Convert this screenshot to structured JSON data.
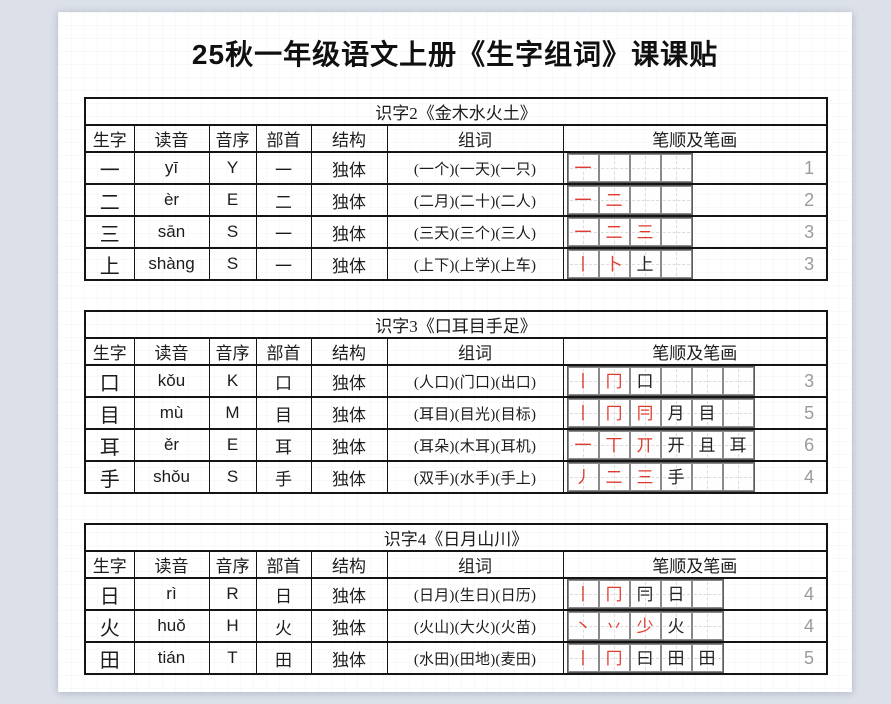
{
  "page": {
    "title": "25秋一年级语文上册《生字组词》课课贴"
  },
  "columns": [
    "生字",
    "读音",
    "音序",
    "部首",
    "结构",
    "组词",
    "笔顺及笔画"
  ],
  "colors": {
    "background": "#dbe0e9",
    "accent_red": "#d6362b",
    "stroke_red": "#de3b2d",
    "count_gray": "#9b9b9b",
    "border_black": "#141414"
  },
  "tables": [
    {
      "lesson_title": "识字2《金木水火土》",
      "grid_boxes": 4,
      "rows": [
        {
          "char": "一",
          "pinyin": "yī",
          "initial": "Y",
          "radical": "一",
          "structure": "独体",
          "words": "(一个)(一天)(一只)",
          "count": "1",
          "strokes": [
            {
              "g": "一",
              "c": "red"
            }
          ]
        },
        {
          "char": "二",
          "pinyin": "èr",
          "initial": "E",
          "radical": "二",
          "structure": "独体",
          "words": "(二月)(二十)(二人)",
          "count": "2",
          "strokes": [
            {
              "g": "一",
              "c": "red"
            },
            {
              "g": "二",
              "c": "red"
            }
          ]
        },
        {
          "char": "三",
          "pinyin": "sān",
          "initial": "S",
          "radical": "一",
          "structure": "独体",
          "words": "(三天)(三个)(三人)",
          "count": "3",
          "strokes": [
            {
              "g": "一",
              "c": "red"
            },
            {
              "g": "二",
              "c": "red"
            },
            {
              "g": "三",
              "c": "red"
            }
          ]
        },
        {
          "char": "上",
          "pinyin": "shàng",
          "initial": "S",
          "radical": "一",
          "structure": "独体",
          "words": "(上下)(上学)(上车)",
          "count": "3",
          "strokes": [
            {
              "g": "丨",
              "c": "red"
            },
            {
              "g": "卜",
              "c": "red"
            },
            {
              "g": "上",
              "c": "black"
            }
          ]
        }
      ]
    },
    {
      "lesson_title": "识字3《口耳目手足》",
      "grid_boxes": 6,
      "rows": [
        {
          "char": "口",
          "pinyin": "kǒu",
          "initial": "K",
          "radical": "口",
          "structure": "独体",
          "words": "(人口)(门口)(出口)",
          "count": "3",
          "strokes": [
            {
              "g": "丨",
              "c": "red"
            },
            {
              "g": "冂",
              "c": "red"
            },
            {
              "g": "口",
              "c": "black"
            }
          ]
        },
        {
          "char": "目",
          "pinyin": "mù",
          "initial": "M",
          "radical": "目",
          "structure": "独体",
          "words": "(耳目)(目光)(目标)",
          "count": "5",
          "strokes": [
            {
              "g": "丨",
              "c": "red"
            },
            {
              "g": "冂",
              "c": "red"
            },
            {
              "g": "冃",
              "c": "red"
            },
            {
              "g": "月",
              "c": "black"
            },
            {
              "g": "目",
              "c": "black"
            }
          ]
        },
        {
          "char": "耳",
          "pinyin": "ěr",
          "initial": "E",
          "radical": "耳",
          "structure": "独体",
          "words": "(耳朵)(木耳)(耳机)",
          "count": "6",
          "strokes": [
            {
              "g": "一",
              "c": "red"
            },
            {
              "g": "丅",
              "c": "red"
            },
            {
              "g": "丌",
              "c": "red"
            },
            {
              "g": "开",
              "c": "black"
            },
            {
              "g": "且",
              "c": "black"
            },
            {
              "g": "耳",
              "c": "black"
            }
          ]
        },
        {
          "char": "手",
          "pinyin": "shǒu",
          "initial": "S",
          "radical": "手",
          "structure": "独体",
          "words": "(双手)(水手)(手上)",
          "count": "4",
          "strokes": [
            {
              "g": "丿",
              "c": "red"
            },
            {
              "g": "二",
              "c": "red"
            },
            {
              "g": "三",
              "c": "red"
            },
            {
              "g": "手",
              "c": "black"
            }
          ]
        }
      ]
    },
    {
      "lesson_title": "识字4《日月山川》",
      "grid_boxes": 5,
      "rows": [
        {
          "char": "日",
          "pinyin": "rì",
          "initial": "R",
          "radical": "日",
          "structure": "独体",
          "words": "(日月)(生日)(日历)",
          "count": "4",
          "strokes": [
            {
              "g": "丨",
              "c": "red"
            },
            {
              "g": "冂",
              "c": "red"
            },
            {
              "g": "冃",
              "c": "black"
            },
            {
              "g": "日",
              "c": "black"
            }
          ]
        },
        {
          "char": "火",
          "pinyin": "huǒ",
          "initial": "H",
          "radical": "火",
          "structure": "独体",
          "words": "(火山)(大火)(火苗)",
          "count": "4",
          "strokes": [
            {
              "g": "丶",
              "c": "red"
            },
            {
              "g": "丷",
              "c": "red"
            },
            {
              "g": "少",
              "c": "red"
            },
            {
              "g": "火",
              "c": "black"
            }
          ]
        },
        {
          "char": "田",
          "pinyin": "tián",
          "initial": "T",
          "radical": "田",
          "structure": "独体",
          "words": "(水田)(田地)(麦田)",
          "count": "5",
          "strokes": [
            {
              "g": "丨",
              "c": "red"
            },
            {
              "g": "冂",
              "c": "red"
            },
            {
              "g": "曰",
              "c": "black"
            },
            {
              "g": "田",
              "c": "black"
            },
            {
              "g": "田",
              "c": "black"
            }
          ]
        }
      ]
    }
  ]
}
